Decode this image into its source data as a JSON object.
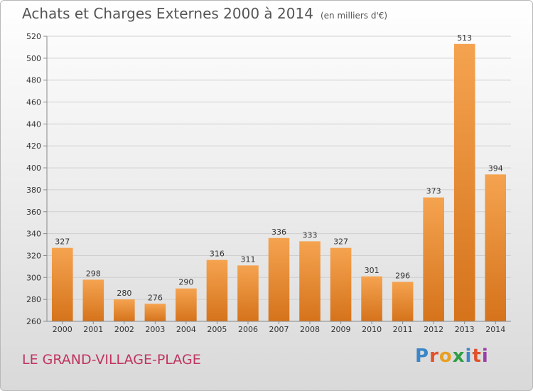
{
  "header": {
    "title": "Achats et Charges Externes 2000 à 2014",
    "unit": "(en milliers d'€)"
  },
  "footer": {
    "commune": "LE GRAND-VILLAGE-PLAGE",
    "logo_text": "Proxiti",
    "logo_colors": [
      "#3a86c8",
      "#e0522a",
      "#e8a020",
      "#2f9e44",
      "#3a86c8",
      "#e0522a",
      "#9c3fa8"
    ]
  },
  "colors": {
    "bar_top": "#f5a350",
    "bar_bottom": "#d5731b",
    "axis": "#888888",
    "grid": "#cfcfcf",
    "text": "#333333"
  },
  "chart_data": {
    "type": "bar",
    "categories": [
      "2000",
      "2001",
      "2002",
      "2003",
      "2004",
      "2005",
      "2006",
      "2007",
      "2008",
      "2009",
      "2010",
      "2011",
      "2012",
      "2013",
      "2014"
    ],
    "values": [
      327,
      298,
      280,
      276,
      290,
      316,
      311,
      336,
      333,
      327,
      301,
      296,
      373,
      513,
      394
    ],
    "ylim": [
      260,
      520
    ],
    "yticks": [
      260,
      280,
      300,
      320,
      340,
      360,
      380,
      400,
      420,
      440,
      460,
      480,
      500,
      520
    ],
    "grid": true
  }
}
